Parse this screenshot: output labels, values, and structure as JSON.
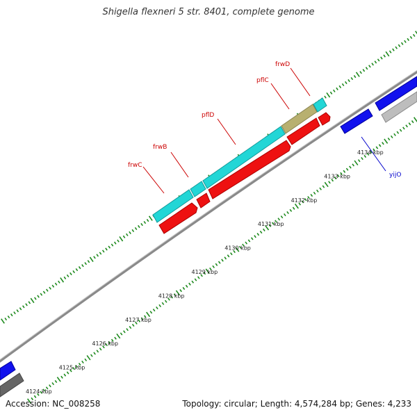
{
  "title": "Shigella flexneri 5 str. 8401, complete genome",
  "footer": {
    "accession": "Accession: NC_008258",
    "summary": "Topology: circular; Length: 4,574,284 bp; Genes: 4,233"
  },
  "colors": {
    "backbone": "#8a8a8a",
    "tick": "#1e8a1e",
    "label_red": "#cc0000",
    "label_blue": "#0000cc",
    "cyan": "#22d6d6",
    "olive": "#b8b070",
    "red": "#ee1111",
    "blue": "#1111ee",
    "grey": "#bdbdbd",
    "dark_grey": "#666666"
  },
  "scale_labels": [
    {
      "kbp": 4124,
      "text": "4124 kbp"
    },
    {
      "kbp": 4125,
      "text": "4125 kbp"
    },
    {
      "kbp": 4126,
      "text": "4126 kbp"
    },
    {
      "kbp": 4127,
      "text": "4127 kbp"
    },
    {
      "kbp": 4128,
      "text": "4128 kbp"
    },
    {
      "kbp": 4129,
      "text": "4129 kbp"
    },
    {
      "kbp": 4130,
      "text": "4130 kbp"
    },
    {
      "kbp": 4131,
      "text": "4131 kbp"
    },
    {
      "kbp": 4132,
      "text": "4132 kbp"
    },
    {
      "kbp": 4133,
      "text": "4133 kbp"
    },
    {
      "kbp": 4134,
      "text": "4134 kbp"
    }
  ],
  "genes": [
    {
      "name": "frwC",
      "color": "cyan",
      "label_color": "label_red"
    },
    {
      "name": "frwB",
      "color": "cyan",
      "label_color": "label_red"
    },
    {
      "name": "pflD",
      "color": "cyan",
      "label_color": "label_red"
    },
    {
      "name": "pflC",
      "color": "olive",
      "label_color": "label_red"
    },
    {
      "name": "frwD",
      "color": "cyan",
      "label_color": "label_red"
    },
    {
      "name": "yijO",
      "color": "blue",
      "label_color": "label_blue"
    }
  ]
}
